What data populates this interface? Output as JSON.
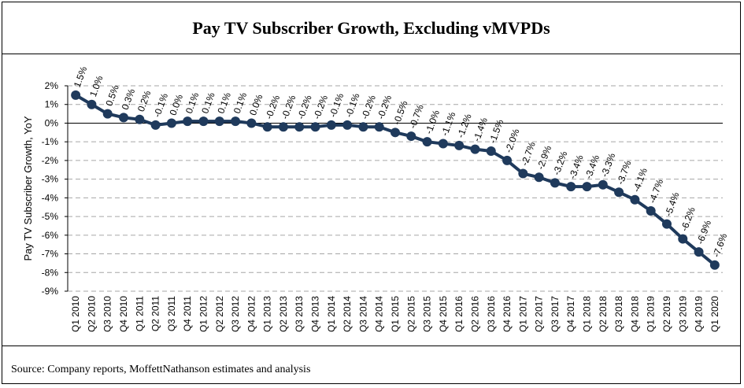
{
  "title": "Pay TV Subscriber Growth, Excluding vMVPDs",
  "source": "Source: Company reports, MoffettNathanson estimates and analysis",
  "colors": {
    "line": "#1f3a5c",
    "marker": "#1f3a5c",
    "grid": "#a6a6a6",
    "axis": "#000000"
  },
  "chart_data": {
    "type": "line",
    "title": "Pay TV Subscriber Growth, Excluding vMVPDs",
    "xlabel": "",
    "ylabel": "Pay TV Subscriber Growth, YoY",
    "ylim": [
      -9,
      2
    ],
    "yticks": [
      "2%",
      "1%",
      "0%",
      "-1%",
      "-2%",
      "-3%",
      "-4%",
      "-5%",
      "-6%",
      "-7%",
      "-8%",
      "-9%"
    ],
    "grid": "horizontal dashed",
    "categories": [
      "Q1 2010",
      "Q2 2010",
      "Q3 2010",
      "Q4 2010",
      "Q1 2011",
      "Q2 2011",
      "Q3 2011",
      "Q4 2011",
      "Q1 2012",
      "Q2 2012",
      "Q3 2012",
      "Q4 2012",
      "Q1 2013",
      "Q2 2013",
      "Q3 2013",
      "Q4 2013",
      "Q1 2014",
      "Q2 2014",
      "Q3 2014",
      "Q4 2014",
      "Q1 2015",
      "Q2 2015",
      "Q3 2015",
      "Q4 2015",
      "Q1 2016",
      "Q2 2016",
      "Q3 2016",
      "Q4 2016",
      "Q1 2017",
      "Q2 2017",
      "Q3 2017",
      "Q4 2017",
      "Q1 2018",
      "Q2 2018",
      "Q3 2018",
      "Q4 2018",
      "Q1 2019",
      "Q2 2019",
      "Q3 2019",
      "Q4 2019",
      "Q1 2020"
    ],
    "values": [
      1.5,
      1.0,
      0.5,
      0.3,
      0.2,
      -0.1,
      0.0,
      0.1,
      0.1,
      0.1,
      0.1,
      0.0,
      -0.2,
      -0.2,
      -0.2,
      -0.2,
      -0.1,
      -0.1,
      -0.2,
      -0.2,
      -0.5,
      -0.7,
      -1.0,
      -1.1,
      -1.2,
      -1.4,
      -1.5,
      -2.0,
      -2.7,
      -2.9,
      -3.2,
      -3.4,
      -3.4,
      -3.3,
      -3.7,
      -4.1,
      -4.7,
      -5.4,
      -6.2,
      -6.9,
      -7.6
    ],
    "data_labels": [
      "1.5%",
      "1.0%",
      "0.5%",
      "0.3%",
      "0.2%",
      "-0.1%",
      "0.0%",
      "0.1%",
      "0.1%",
      "0.1%",
      "0.1%",
      "0.0%",
      "-0.2%",
      "-0.2%",
      "-0.2%",
      "-0.2%",
      "-0.1%",
      "-0.1%",
      "-0.2%",
      "-0.2%",
      "-0.5%",
      "-0.7%",
      "-1.0%",
      "-1.1%",
      "-1.2%",
      "-1.4%",
      "-1.5%",
      "-2.0%",
      "-2.7%",
      "-2.9%",
      "-3.2%",
      "-3.4%",
      "-3.4%",
      "-3.3%",
      "-3.7%",
      "-4.1%",
      "-4.7%",
      "-5.4%",
      "-6.2%",
      "-6.9%",
      "-7.6%"
    ]
  }
}
